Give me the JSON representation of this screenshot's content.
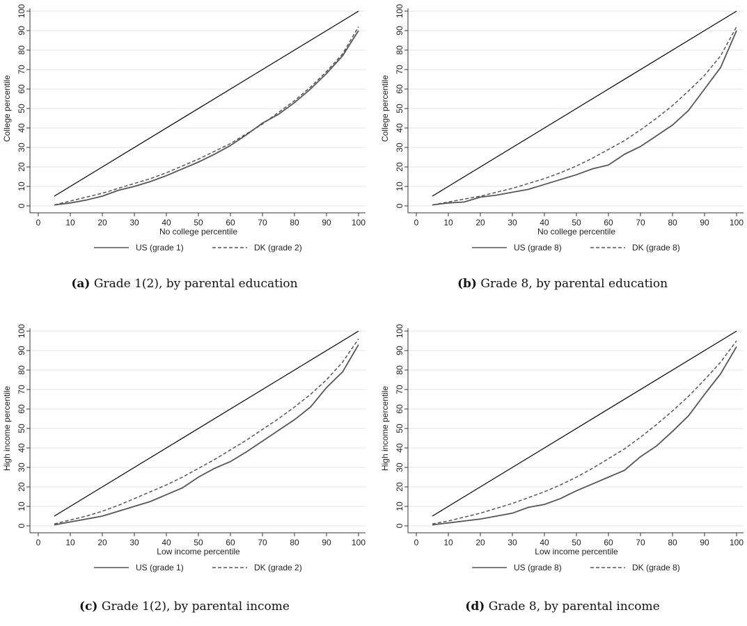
{
  "chart_data": [
    {
      "type": "line",
      "panel_label": "(a)",
      "caption": "Grade 1(2), by parental education",
      "xlabel": "No college percentile",
      "ylabel": "College percentile",
      "xticks": [
        0,
        10,
        20,
        30,
        40,
        50,
        60,
        70,
        80,
        90,
        100
      ],
      "yticks": [
        0,
        10,
        20,
        30,
        40,
        50,
        60,
        70,
        80,
        90,
        100
      ],
      "xlim": [
        0,
        100
      ],
      "ylim": [
        0,
        100
      ],
      "grid": true,
      "legend_position": "bottom",
      "series": [
        {
          "name": "",
          "style": "reference",
          "x": [
            5,
            100
          ],
          "y": [
            5,
            100
          ]
        },
        {
          "name": "US (grade 1)",
          "style": "solid",
          "x": [
            5,
            10,
            15,
            20,
            25,
            30,
            35,
            40,
            45,
            50,
            55,
            60,
            65,
            70,
            75,
            80,
            85,
            90,
            95,
            100
          ],
          "y": [
            0.5,
            1.5,
            3,
            5,
            8,
            10,
            12.5,
            15.5,
            19,
            22.5,
            26.5,
            31,
            36.5,
            42.5,
            47,
            53,
            60,
            68,
            77,
            90
          ]
        },
        {
          "name": "DK (grade 2)",
          "style": "dashed",
          "x": [
            5,
            10,
            15,
            20,
            25,
            30,
            35,
            40,
            45,
            50,
            55,
            60,
            65,
            70,
            75,
            80,
            85,
            90,
            95,
            100
          ],
          "y": [
            0.5,
            2.5,
            4.5,
            6.5,
            9,
            11.5,
            14,
            17,
            20.5,
            24,
            28,
            32,
            37,
            42,
            48,
            54,
            61,
            69,
            78,
            92
          ]
        }
      ]
    },
    {
      "type": "line",
      "panel_label": "(b)",
      "caption": "Grade 8, by parental education",
      "xlabel": "No college percentile",
      "ylabel": "College percentile",
      "xticks": [
        0,
        10,
        20,
        30,
        40,
        50,
        60,
        70,
        80,
        90,
        100
      ],
      "yticks": [
        0,
        10,
        20,
        30,
        40,
        50,
        60,
        70,
        80,
        90,
        100
      ],
      "xlim": [
        0,
        100
      ],
      "ylim": [
        0,
        100
      ],
      "grid": true,
      "legend_position": "bottom",
      "series": [
        {
          "name": "",
          "style": "reference",
          "x": [
            5,
            100
          ],
          "y": [
            5,
            100
          ]
        },
        {
          "name": "US (grade 8)",
          "style": "solid",
          "x": [
            5,
            10,
            15,
            20,
            25,
            30,
            35,
            40,
            45,
            50,
            55,
            60,
            65,
            70,
            75,
            80,
            85,
            90,
            95,
            100
          ],
          "y": [
            0.5,
            1.5,
            2,
            4.5,
            5.5,
            7,
            8.5,
            11,
            13.5,
            16,
            19,
            21,
            26.5,
            30.5,
            36,
            41.5,
            49,
            60,
            71,
            90
          ]
        },
        {
          "name": "DK (grade 8)",
          "style": "dashed",
          "x": [
            5,
            10,
            15,
            20,
            25,
            30,
            35,
            40,
            45,
            50,
            55,
            60,
            65,
            70,
            75,
            80,
            85,
            90,
            95,
            100
          ],
          "y": [
            0.5,
            2,
            3.5,
            5,
            7,
            9,
            11.5,
            14,
            17,
            20.5,
            24.5,
            29,
            33.5,
            39,
            45,
            51.5,
            59,
            67,
            77,
            92
          ]
        }
      ]
    },
    {
      "type": "line",
      "panel_label": "(c)",
      "caption": "Grade 1(2), by parental income",
      "xlabel": "Low income percentile",
      "ylabel": "High income percentile",
      "xticks": [
        0,
        10,
        20,
        30,
        40,
        50,
        60,
        70,
        80,
        90,
        100
      ],
      "yticks": [
        0,
        10,
        20,
        30,
        40,
        50,
        60,
        70,
        80,
        90,
        100
      ],
      "xlim": [
        0,
        100
      ],
      "ylim": [
        0,
        100
      ],
      "grid": true,
      "legend_position": "bottom",
      "series": [
        {
          "name": "",
          "style": "reference",
          "x": [
            5,
            100
          ],
          "y": [
            5,
            100
          ]
        },
        {
          "name": "US (grade 1)",
          "style": "solid",
          "x": [
            5,
            10,
            15,
            20,
            25,
            30,
            35,
            40,
            45,
            50,
            55,
            60,
            65,
            70,
            75,
            80,
            85,
            90,
            95,
            100
          ],
          "y": [
            0.5,
            2,
            3.5,
            5,
            7.5,
            10,
            12.5,
            16,
            19.5,
            25,
            29.5,
            33,
            38,
            43.5,
            49,
            54.5,
            61,
            71,
            79,
            93
          ]
        },
        {
          "name": "DK (grade 2)",
          "style": "dashed",
          "x": [
            5,
            10,
            15,
            20,
            25,
            30,
            35,
            40,
            45,
            50,
            55,
            60,
            65,
            70,
            75,
            80,
            85,
            90,
            95,
            100
          ],
          "y": [
            1,
            3,
            5,
            7.5,
            10.5,
            14,
            17.5,
            21,
            25,
            29.5,
            34,
            39,
            44,
            49.5,
            55,
            61,
            67.5,
            75,
            84,
            96
          ]
        }
      ]
    },
    {
      "type": "line",
      "panel_label": "(d)",
      "caption": "Grade 8, by parental income",
      "xlabel": "Low income percentile",
      "ylabel": "High income percentile",
      "xticks": [
        0,
        10,
        20,
        30,
        40,
        50,
        60,
        70,
        80,
        90,
        100
      ],
      "yticks": [
        0,
        10,
        20,
        30,
        40,
        50,
        60,
        70,
        80,
        90,
        100
      ],
      "xlim": [
        0,
        100
      ],
      "ylim": [
        0,
        100
      ],
      "grid": true,
      "legend_position": "bottom",
      "series": [
        {
          "name": "",
          "style": "reference",
          "x": [
            5,
            100
          ],
          "y": [
            5,
            100
          ]
        },
        {
          "name": "US (grade 8)",
          "style": "solid",
          "x": [
            5,
            10,
            15,
            20,
            25,
            30,
            35,
            40,
            45,
            50,
            55,
            60,
            65,
            70,
            75,
            80,
            85,
            90,
            95,
            100
          ],
          "y": [
            0.5,
            1.5,
            2.5,
            3.5,
            5,
            6.5,
            9.5,
            11,
            14,
            18,
            21.5,
            25,
            28.5,
            35.5,
            41,
            48.5,
            56.5,
            67.5,
            78,
            92
          ]
        },
        {
          "name": "DK (grade 8)",
          "style": "dashed",
          "x": [
            5,
            10,
            15,
            20,
            25,
            30,
            35,
            40,
            45,
            50,
            55,
            60,
            65,
            70,
            75,
            80,
            85,
            90,
            95,
            100
          ],
          "y": [
            1,
            2.5,
            4.5,
            6.5,
            9,
            11.5,
            14.5,
            17.5,
            21,
            25,
            29.5,
            34.5,
            39.5,
            45.5,
            52,
            59,
            66.5,
            75,
            84,
            95
          ]
        }
      ]
    }
  ]
}
